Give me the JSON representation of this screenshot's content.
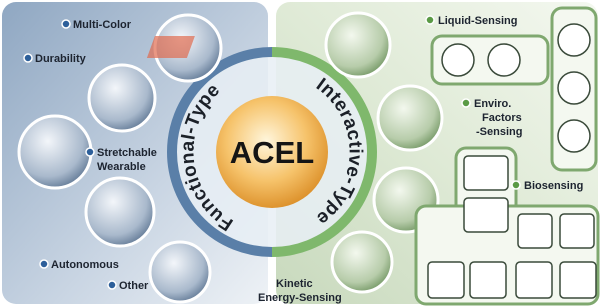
{
  "center": {
    "label": "ACEL"
  },
  "left_panel": {
    "title": "Functional-Type",
    "items": [
      {
        "lines": [
          "Multi-Color"
        ]
      },
      {
        "lines": [
          "Durability"
        ]
      },
      {
        "lines": [
          "Stretchable",
          "Wearable"
        ]
      },
      {
        "lines": [
          "Autonomous"
        ]
      },
      {
        "lines": [
          "Other"
        ]
      }
    ]
  },
  "right_panel": {
    "title": "Interactive-Type",
    "items": [
      {
        "lines": [
          "Liquid-Sensing"
        ]
      },
      {
        "lines": [
          "Enviro.",
          "Factors",
          "-Sensing"
        ]
      },
      {
        "lines": [
          "Biosensing"
        ]
      },
      {
        "lines": [
          "Kinetic",
          "Energy-Sensing"
        ]
      }
    ]
  }
}
